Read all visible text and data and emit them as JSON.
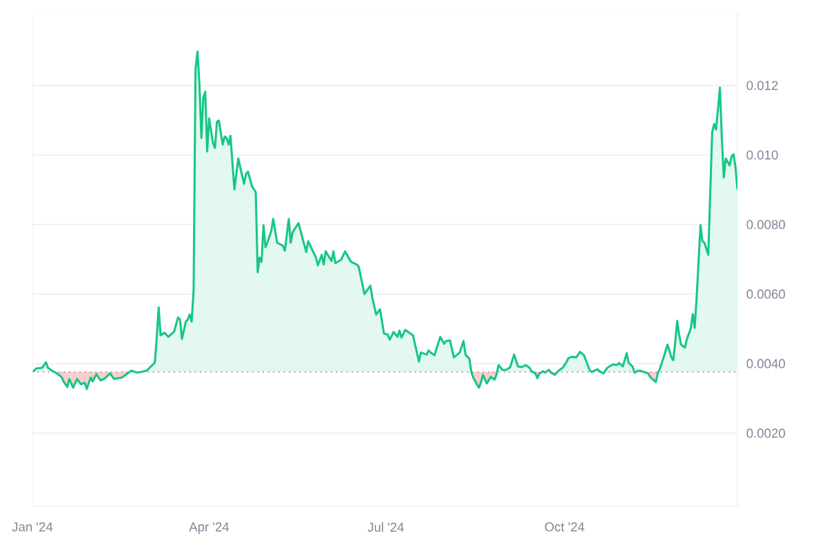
{
  "chart_data": {
    "type": "area",
    "x": [
      "2024-01-01",
      "2024-01-03",
      "2024-01-06",
      "2024-01-08",
      "2024-01-09",
      "2024-01-11",
      "2024-01-13",
      "2024-01-16",
      "2024-01-17",
      "2024-01-19",
      "2024-01-20",
      "2024-01-22",
      "2024-01-24",
      "2024-01-26",
      "2024-01-28",
      "2024-01-29",
      "2024-01-31",
      "2024-02-01",
      "2024-02-03",
      "2024-02-05",
      "2024-02-07",
      "2024-02-10",
      "2024-02-12",
      "2024-02-16",
      "2024-02-18",
      "2024-02-21",
      "2024-02-24",
      "2024-02-26",
      "2024-02-29",
      "2024-03-02",
      "2024-03-04",
      "2024-03-05",
      "2024-03-06",
      "2024-03-07",
      "2024-03-09",
      "2024-03-11",
      "2024-03-14",
      "2024-03-16",
      "2024-03-17",
      "2024-03-18",
      "2024-03-20",
      "2024-03-21",
      "2024-03-22",
      "2024-03-23",
      "2024-03-24",
      "2024-03-25",
      "2024-03-26",
      "2024-03-27",
      "2024-03-28",
      "2024-03-29",
      "2024-03-30",
      "2024-03-31",
      "2024-04-01",
      "2024-04-03",
      "2024-04-04",
      "2024-04-05",
      "2024-04-06",
      "2024-04-08",
      "2024-04-09",
      "2024-04-10",
      "2024-04-11",
      "2024-04-12",
      "2024-04-14",
      "2024-04-16",
      "2024-04-19",
      "2024-04-20",
      "2024-04-21",
      "2024-04-23",
      "2024-04-25",
      "2024-04-26",
      "2024-04-27",
      "2024-04-28",
      "2024-04-29",
      "2024-04-30",
      "2024-05-01",
      "2024-05-03",
      "2024-05-04",
      "2024-05-06",
      "2024-05-09",
      "2024-05-10",
      "2024-05-12",
      "2024-05-13",
      "2024-05-14",
      "2024-05-17",
      "2024-05-21",
      "2024-05-22",
      "2024-05-26",
      "2024-05-27",
      "2024-05-29",
      "2024-05-30",
      "2024-05-31",
      "2024-06-03",
      "2024-06-04",
      "2024-06-05",
      "2024-06-08",
      "2024-06-10",
      "2024-06-13",
      "2024-06-16",
      "2024-06-17",
      "2024-06-20",
      "2024-06-23",
      "2024-06-24",
      "2024-06-26",
      "2024-06-28",
      "2024-06-30",
      "2024-07-02",
      "2024-07-03",
      "2024-07-05",
      "2024-07-07",
      "2024-07-08",
      "2024-07-09",
      "2024-07-11",
      "2024-07-14",
      "2024-07-15",
      "2024-07-18",
      "2024-07-19",
      "2024-07-22",
      "2024-07-23",
      "2024-07-24",
      "2024-07-26",
      "2024-07-29",
      "2024-07-31",
      "2024-08-01",
      "2024-08-03",
      "2024-08-05",
      "2024-08-08",
      "2024-08-10",
      "2024-08-11",
      "2024-08-13",
      "2024-08-14",
      "2024-08-15",
      "2024-08-17",
      "2024-08-18",
      "2024-08-19",
      "2024-08-20",
      "2024-08-22",
      "2024-08-24",
      "2024-08-26",
      "2024-08-27",
      "2024-08-28",
      "2024-08-30",
      "2024-09-01",
      "2024-09-03",
      "2024-09-05",
      "2024-09-06",
      "2024-09-07",
      "2024-09-09",
      "2024-09-11",
      "2024-09-13",
      "2024-09-14",
      "2024-09-16",
      "2024-09-17",
      "2024-09-18",
      "2024-09-20",
      "2024-09-21",
      "2024-09-23",
      "2024-09-24",
      "2024-09-26",
      "2024-09-28",
      "2024-09-30",
      "2024-10-02",
      "2024-10-03",
      "2024-10-05",
      "2024-10-07",
      "2024-10-09",
      "2024-10-11",
      "2024-10-14",
      "2024-10-15",
      "2024-10-18",
      "2024-10-19",
      "2024-10-21",
      "2024-10-23",
      "2024-10-26",
      "2024-10-28",
      "2024-10-29",
      "2024-10-31",
      "2024-11-02",
      "2024-11-03",
      "2024-11-05",
      "2024-11-06",
      "2024-11-08",
      "2024-11-10",
      "2024-11-13",
      "2024-11-14",
      "2024-11-17",
      "2024-11-18",
      "2024-11-19",
      "2024-11-21",
      "2024-11-23",
      "2024-11-25",
      "2024-11-26",
      "2024-11-27",
      "2024-11-28",
      "2024-11-29",
      "2024-11-30",
      "2024-12-02",
      "2024-12-03",
      "2024-12-05",
      "2024-12-06",
      "2024-12-07",
      "2024-12-08",
      "2024-12-10",
      "2024-12-11",
      "2024-12-12",
      "2024-12-14",
      "2024-12-16",
      "2024-12-17",
      "2024-12-18",
      "2024-12-20",
      "2024-12-21",
      "2024-12-22",
      "2024-12-23",
      "2024-12-25",
      "2024-12-26",
      "2024-12-27",
      "2024-12-28",
      "2024-12-29"
    ],
    "series": [
      {
        "color": "#16c784",
        "values": [
          0.00376,
          0.00386,
          0.00388,
          0.00404,
          0.00388,
          0.0038,
          0.00374,
          0.00362,
          0.00349,
          0.00333,
          0.00356,
          0.00331,
          0.00356,
          0.00341,
          0.00345,
          0.00327,
          0.0036,
          0.00349,
          0.0037,
          0.00352,
          0.00356,
          0.00372,
          0.00356,
          0.0036,
          0.00368,
          0.0038,
          0.00374,
          0.00376,
          0.0038,
          0.00392,
          0.00402,
          0.00471,
          0.00562,
          0.00481,
          0.00489,
          0.00477,
          0.00493,
          0.00533,
          0.00527,
          0.00471,
          0.00521,
          0.00527,
          0.00541,
          0.00521,
          0.0061,
          0.01247,
          0.01297,
          0.01204,
          0.01049,
          0.01164,
          0.01182,
          0.0101,
          0.01105,
          0.01034,
          0.0102,
          0.01095,
          0.01099,
          0.0103,
          0.01053,
          0.01049,
          0.0103,
          0.01055,
          0.00901,
          0.0099,
          0.00917,
          0.00946,
          0.00952,
          0.00911,
          0.00893,
          0.00663,
          0.00705,
          0.00693,
          0.00798,
          0.00735,
          0.00748,
          0.00782,
          0.00816,
          0.00748,
          0.00739,
          0.00725,
          0.00816,
          0.00748,
          0.00778,
          0.00804,
          0.00721,
          0.00752,
          0.00705,
          0.00683,
          0.00713,
          0.00685,
          0.00723,
          0.00695,
          0.00723,
          0.00689,
          0.00699,
          0.00723,
          0.00693,
          0.00685,
          0.00679,
          0.006,
          0.00624,
          0.0059,
          0.00541,
          0.00556,
          0.00487,
          0.00483,
          0.00469,
          0.00491,
          0.00477,
          0.00495,
          0.00475,
          0.00497,
          0.00485,
          0.00481,
          0.00406,
          0.00432,
          0.00426,
          0.00438,
          0.00432,
          0.00424,
          0.00477,
          0.00457,
          0.00465,
          0.00467,
          0.00418,
          0.00432,
          0.00465,
          0.00426,
          0.00414,
          0.00376,
          0.0036,
          0.00339,
          0.00331,
          0.00347,
          0.00368,
          0.00343,
          0.00362,
          0.00354,
          0.0037,
          0.00396,
          0.00382,
          0.00382,
          0.0039,
          0.00426,
          0.0041,
          0.00392,
          0.0039,
          0.00396,
          0.00388,
          0.00378,
          0.00372,
          0.00358,
          0.00372,
          0.00378,
          0.00374,
          0.00382,
          0.00374,
          0.00368,
          0.0038,
          0.00388,
          0.00404,
          0.00416,
          0.0042,
          0.00418,
          0.00434,
          0.00424,
          0.0038,
          0.00376,
          0.00384,
          0.00378,
          0.00372,
          0.00388,
          0.00398,
          0.00396,
          0.00402,
          0.00392,
          0.0043,
          0.00402,
          0.00392,
          0.00374,
          0.0038,
          0.00378,
          0.00372,
          0.00362,
          0.00347,
          0.00372,
          0.00384,
          0.00418,
          0.00455,
          0.00418,
          0.0041,
          0.00463,
          0.00523,
          0.00483,
          0.00455,
          0.00446,
          0.00471,
          0.00501,
          0.00543,
          0.00503,
          0.0059,
          0.00798,
          0.00752,
          0.00748,
          0.00713,
          0.01065,
          0.01089,
          0.01073,
          0.01194,
          0.01045,
          0.00935,
          0.0099,
          0.0097,
          0.00996,
          0.01002,
          0.00966,
          0.00901
        ]
      }
    ],
    "xlim": [
      "2024-01-01",
      "2024-12-29"
    ],
    "xticks": [
      {
        "value": "2024-01-01",
        "label": "Jan '24"
      },
      {
        "value": "2024-04-01",
        "label": "Apr '24"
      },
      {
        "value": "2024-07-01",
        "label": "Jul '24"
      },
      {
        "value": "2024-10-01",
        "label": "Oct '24"
      }
    ],
    "ylim": [
      -0.0001,
      0.0141
    ],
    "yticks": [
      {
        "value": 0.002,
        "label": "0.0020"
      },
      {
        "value": 0.004,
        "label": "0.0040"
      },
      {
        "value": 0.006,
        "label": "0.0060"
      },
      {
        "value": 0.008,
        "label": "0.0080"
      },
      {
        "value": 0.01,
        "label": "0.010"
      },
      {
        "value": 0.012,
        "label": "0.012"
      }
    ],
    "grid": "y",
    "ref_lines": [
      {
        "axis": "y",
        "value": 0.00376,
        "color": "#8c8f99",
        "line_style": "dotted"
      }
    ]
  }
}
